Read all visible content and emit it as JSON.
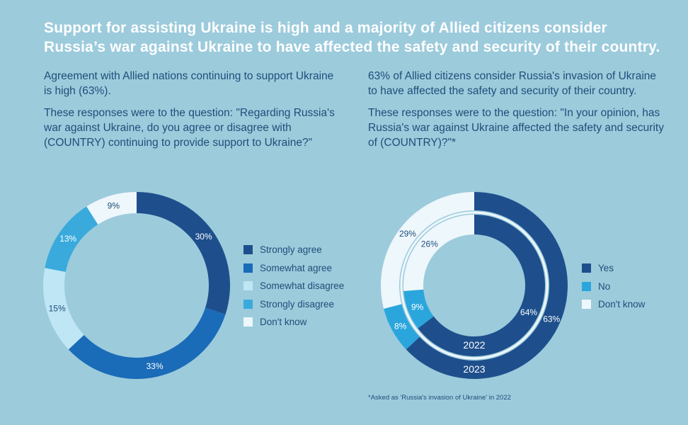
{
  "title_line1": "Support for assisting Ukraine is high and a majority of Allied citizens consider",
  "title_line2": "Russia’s war against Ukraine to have affected the safety and security of their country.",
  "left": {
    "intro": "Agreement with Allied nations continuing to support Ukraine is high (63%).",
    "question": "These responses were to the question: \"Regarding Russia's war against Ukraine, do you agree or disagree with (COUNTRY) continuing to provide support to Ukraine?\""
  },
  "right": {
    "intro": "63% of Allied citizens consider Russia's invasion of Ukraine to have affected the safety and security of their country.",
    "question": "These responses were to the question: \"In your opinion, has Russia's war against Ukraine affected the safety and security of (COUNTRY)?\"*"
  },
  "footnote": "*Asked as 'Russia's invasion of Ukraine' in 2022",
  "chart_data": [
    {
      "type": "pie",
      "title": "",
      "categories": [
        "Strongly agree",
        "Somewhat agree",
        "Somewhat disagree",
        "Strongly disagree",
        "Don't know"
      ],
      "values": [
        30,
        33,
        15,
        13,
        9
      ],
      "labels": [
        "30%",
        "33%",
        "15%",
        "13%",
        "9%"
      ],
      "colors": [
        "#1e4f8c",
        "#1a6bb8",
        "#bfe6f5",
        "#3aaadc",
        "#eef7fb"
      ],
      "legend": "right"
    },
    {
      "type": "pie",
      "title": "",
      "categories": [
        "Yes",
        "No",
        "Don't know"
      ],
      "colors": [
        "#1e4f8c",
        "#2aa6dc",
        "#eef7fb"
      ],
      "legend": "right",
      "series": [
        {
          "name": "2023",
          "values": [
            63,
            8,
            29
          ],
          "labels": [
            "63%",
            "8%",
            "29%"
          ]
        },
        {
          "name": "2022",
          "values": [
            64,
            9,
            26
          ],
          "labels": [
            "64%",
            "9%",
            "26%"
          ]
        }
      ]
    }
  ]
}
